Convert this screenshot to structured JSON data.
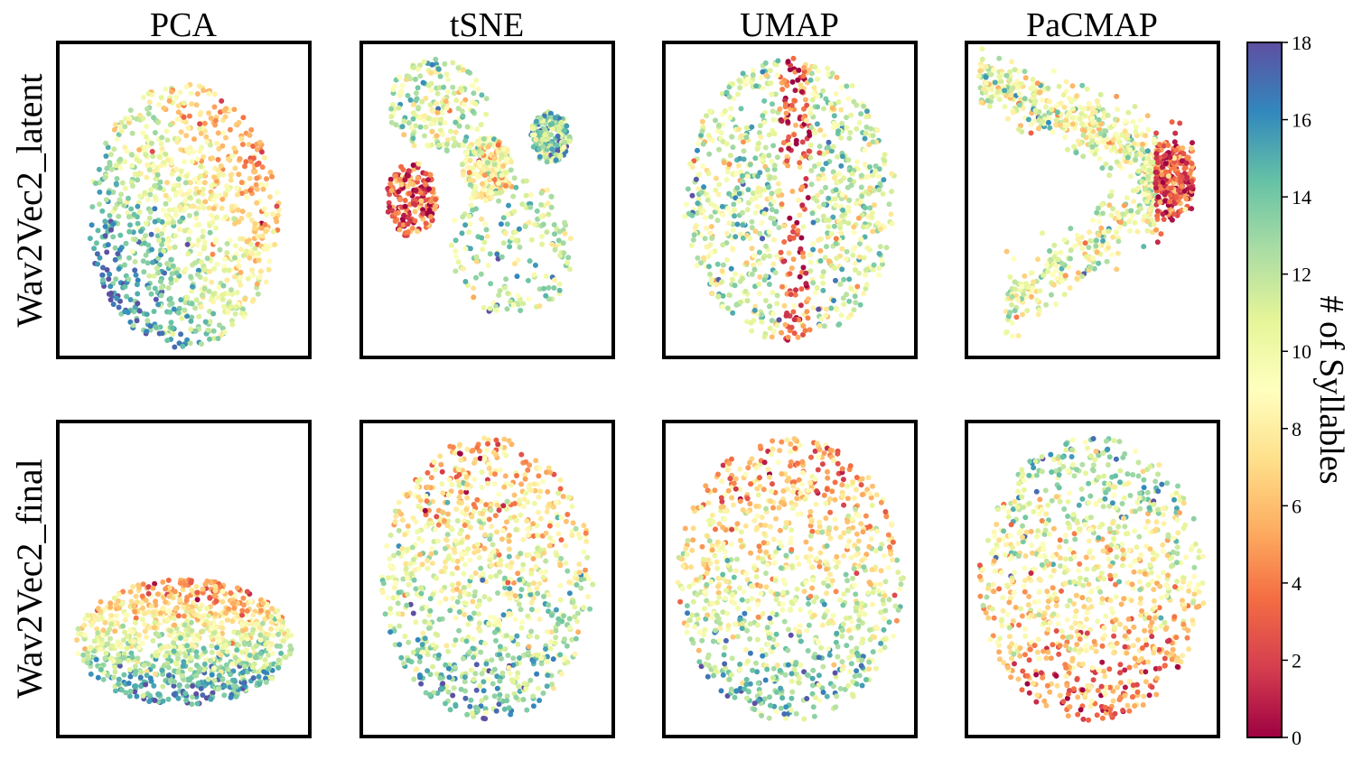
{
  "columns": [
    "PCA",
    "tSNE",
    "UMAP",
    "PaCMAP"
  ],
  "rows": [
    "Wav2Vec2_latent",
    "Wav2Vec2_final"
  ],
  "colorbar": {
    "label": "# of Syllables",
    "ticks": [
      "0",
      "2",
      "4",
      "6",
      "8",
      "10",
      "12",
      "14",
      "16",
      "18"
    ],
    "min": 0,
    "max": 18,
    "colormap": "Spectral",
    "stops": [
      "#9e0142",
      "#d53e4f",
      "#f46d43",
      "#fdae61",
      "#fee08b",
      "#ffffbf",
      "#e6f598",
      "#abdda4",
      "#66c2a5",
      "#3288bd",
      "#5e4fa2"
    ]
  },
  "chart_data": {
    "type": "scatter",
    "color_by": "# of Syllables",
    "color_range": [
      0,
      18
    ],
    "panels": [
      {
        "row": "Wav2Vec2_latent",
        "method": "PCA",
        "points_approx": 3000,
        "note_shape": "round blob, low syllable counts (red) concentrated upper-right"
      },
      {
        "row": "Wav2Vec2_latent",
        "method": "tSNE",
        "points_approx": 3000,
        "note_shape": "fragmented clusters, red cluster at left"
      },
      {
        "row": "Wav2Vec2_latent",
        "method": "UMAP",
        "points_approx": 3000,
        "note_shape": "blob with central red vertical band"
      },
      {
        "row": "Wav2Vec2_latent",
        "method": "PaCMAP",
        "points_approx": 3000,
        "note_shape": "arrow / boomerang shape, red band at right tip"
      },
      {
        "row": "Wav2Vec2_final",
        "method": "PCA",
        "points_approx": 3000,
        "note_shape": "flattened cloud, red at top, blue at bottom"
      },
      {
        "row": "Wav2Vec2_final",
        "method": "tSNE",
        "points_approx": 3000,
        "note_shape": "round cloud, red at top"
      },
      {
        "row": "Wav2Vec2_final",
        "method": "UMAP",
        "points_approx": 3000,
        "note_shape": "round cloud, red at top, blue at bottom-left"
      },
      {
        "row": "Wav2Vec2_final",
        "method": "PaCMAP",
        "points_approx": 3000,
        "note_shape": "round cloud, blue/green at top, red at bottom"
      }
    ]
  }
}
